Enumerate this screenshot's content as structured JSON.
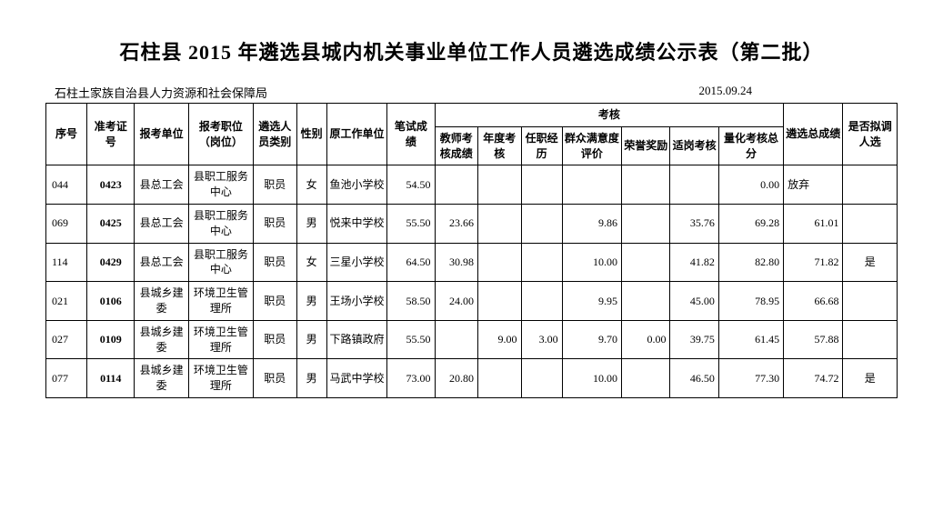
{
  "title": "石柱县 2015 年遴选县城内机关事业单位工作人员遴选成绩公示表（第二批）",
  "header_left": "石柱土家族自治县人力资源和社会保障局",
  "header_right": "2015.09.24",
  "table": {
    "columns": {
      "seq": "序号",
      "exam_id": "准考证号",
      "apply_unit": "报考单位",
      "apply_position": "报考职位（岗位）",
      "category": "遴选人员类别",
      "gender": "性别",
      "orig_unit": "原工作单位",
      "written_score": "笔试成绩",
      "assessment_group": "考核",
      "teacher_score": "教师考核成绩",
      "annual": "年度考核",
      "tenure": "任职经历",
      "mass_eval": "群众满意度评价",
      "honor": "荣誉奖励",
      "fit_assess": "适岗考核",
      "quant_total": "量化考核总分",
      "select_total": "遴选总成绩",
      "candidate": "是否拟调人选"
    },
    "rows": [
      {
        "seq": "044",
        "exam_id": "0423",
        "apply_unit": "县总工会",
        "apply_position": "县职工服务中心",
        "category": "职员",
        "gender": "女",
        "orig_unit": "鱼池小学校",
        "written_score": "54.50",
        "teacher_score": "",
        "annual": "",
        "tenure": "",
        "mass_eval": "",
        "honor": "",
        "fit_assess": "",
        "quant_total": "0.00",
        "select_total": "放弃",
        "candidate": ""
      },
      {
        "seq": "069",
        "exam_id": "0425",
        "apply_unit": "县总工会",
        "apply_position": "县职工服务中心",
        "category": "职员",
        "gender": "男",
        "orig_unit": "悦来中学校",
        "written_score": "55.50",
        "teacher_score": "23.66",
        "annual": "",
        "tenure": "",
        "mass_eval": "9.86",
        "honor": "",
        "fit_assess": "35.76",
        "quant_total": "69.28",
        "select_total": "61.01",
        "candidate": ""
      },
      {
        "seq": "114",
        "exam_id": "0429",
        "apply_unit": "县总工会",
        "apply_position": "县职工服务中心",
        "category": "职员",
        "gender": "女",
        "orig_unit": "三星小学校",
        "written_score": "64.50",
        "teacher_score": "30.98",
        "annual": "",
        "tenure": "",
        "mass_eval": "10.00",
        "honor": "",
        "fit_assess": "41.82",
        "quant_total": "82.80",
        "select_total": "71.82",
        "candidate": "是"
      },
      {
        "seq": "021",
        "exam_id": "0106",
        "apply_unit": "县城乡建委",
        "apply_position": "环境卫生管理所",
        "category": "职员",
        "gender": "男",
        "orig_unit": "王场小学校",
        "written_score": "58.50",
        "teacher_score": "24.00",
        "annual": "",
        "tenure": "",
        "mass_eval": "9.95",
        "honor": "",
        "fit_assess": "45.00",
        "quant_total": "78.95",
        "select_total": "66.68",
        "candidate": ""
      },
      {
        "seq": "027",
        "exam_id": "0109",
        "apply_unit": "县城乡建委",
        "apply_position": "环境卫生管理所",
        "category": "职员",
        "gender": "男",
        "orig_unit": "下路镇政府",
        "written_score": "55.50",
        "teacher_score": "",
        "annual": "9.00",
        "tenure": "3.00",
        "mass_eval": "9.70",
        "honor": "0.00",
        "fit_assess": "39.75",
        "quant_total": "61.45",
        "select_total": "57.88",
        "candidate": ""
      },
      {
        "seq": "077",
        "exam_id": "0114",
        "apply_unit": "县城乡建委",
        "apply_position": "环境卫生管理所",
        "category": "职员",
        "gender": "男",
        "orig_unit": "马武中学校",
        "written_score": "73.00",
        "teacher_score": "20.80",
        "annual": "",
        "tenure": "",
        "mass_eval": "10.00",
        "honor": "",
        "fit_assess": "46.50",
        "quant_total": "77.30",
        "select_total": "74.72",
        "candidate": "是"
      }
    ]
  },
  "style": {
    "title_fontsize": 22,
    "body_fontsize": 12,
    "header_fontsize": 13,
    "border_color": "#000000",
    "background_color": "#ffffff",
    "text_color": "#000000"
  }
}
